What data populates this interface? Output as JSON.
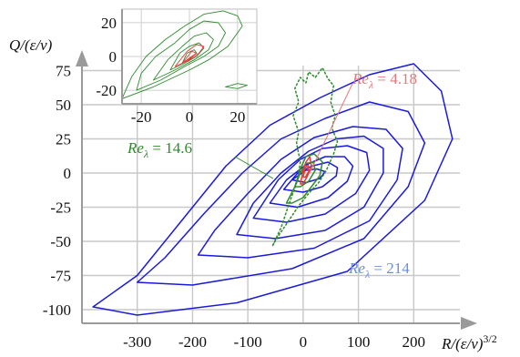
{
  "chart_data": {
    "type": "contour",
    "xlabel": "R/(ε/ν)",
    "xlabel_sup": "3/2",
    "ylabel": "Q/(ε/ν)",
    "x_ticks": [
      -300,
      -200,
      -100,
      0,
      100,
      200
    ],
    "y_ticks": [
      75,
      50,
      25,
      0,
      -25,
      -50,
      -75,
      -100
    ],
    "xlim": [
      -400,
      300
    ],
    "ylim": [
      -110,
      90
    ],
    "grid": true,
    "annotations": [
      {
        "name": "Re",
        "sub": "λ",
        "text": " = 4.18",
        "color": "#e07a7a"
      },
      {
        "name": "Re",
        "sub": "λ",
        "text": " = 14.6",
        "color": "#2e8b2e"
      },
      {
        "name": "Re",
        "sub": "λ",
        "text": " = 214",
        "color": "#6a8fe0"
      }
    ],
    "series": [
      {
        "color": "#1a1adb",
        "contours": [
          [
            [
              -380,
              -98
            ],
            [
              -300,
              -104
            ],
            [
              -120,
              -95
            ],
            [
              80,
              -72
            ],
            [
              220,
              -20
            ],
            [
              270,
              25
            ],
            [
              250,
              60
            ],
            [
              200,
              80
            ],
            [
              120,
              72
            ],
            [
              30,
              55
            ],
            [
              -60,
              35
            ],
            [
              -140,
              5
            ],
            [
              -220,
              -35
            ],
            [
              -300,
              -75
            ],
            [
              -380,
              -98
            ]
          ],
          [
            [
              -300,
              -80
            ],
            [
              -200,
              -82
            ],
            [
              -20,
              -70
            ],
            [
              110,
              -48
            ],
            [
              190,
              -10
            ],
            [
              220,
              22
            ],
            [
              190,
              45
            ],
            [
              120,
              52
            ],
            [
              40,
              40
            ],
            [
              -40,
              25
            ],
            [
              -110,
              0
            ],
            [
              -180,
              -30
            ],
            [
              -250,
              -62
            ],
            [
              -300,
              -80
            ]
          ],
          [
            [
              -190,
              -60
            ],
            [
              -100,
              -62
            ],
            [
              20,
              -55
            ],
            [
              120,
              -35
            ],
            [
              170,
              -5
            ],
            [
              180,
              18
            ],
            [
              150,
              32
            ],
            [
              90,
              34
            ],
            [
              20,
              26
            ],
            [
              -40,
              10
            ],
            [
              -100,
              -15
            ],
            [
              -160,
              -42
            ],
            [
              -190,
              -60
            ]
          ],
          [
            [
              -120,
              -45
            ],
            [
              -50,
              -48
            ],
            [
              40,
              -42
            ],
            [
              110,
              -25
            ],
            [
              145,
              0
            ],
            [
              145,
              18
            ],
            [
              110,
              27
            ],
            [
              60,
              25
            ],
            [
              10,
              16
            ],
            [
              -40,
              0
            ],
            [
              -90,
              -22
            ],
            [
              -120,
              -45
            ]
          ],
          [
            [
              -90,
              -33
            ],
            [
              -30,
              -36
            ],
            [
              40,
              -30
            ],
            [
              95,
              -15
            ],
            [
              120,
              2
            ],
            [
              115,
              15
            ],
            [
              80,
              20
            ],
            [
              35,
              18
            ],
            [
              -5,
              10
            ],
            [
              -45,
              -5
            ],
            [
              -90,
              -33
            ]
          ],
          [
            [
              -60,
              -22
            ],
            [
              -10,
              -25
            ],
            [
              45,
              -18
            ],
            [
              80,
              -6
            ],
            [
              90,
              5
            ],
            [
              75,
              12
            ],
            [
              40,
              12
            ],
            [
              5,
              6
            ],
            [
              -30,
              -5
            ],
            [
              -60,
              -22
            ]
          ],
          [
            [
              -35,
              -12
            ],
            [
              0,
              -14
            ],
            [
              35,
              -10
            ],
            [
              60,
              -2
            ],
            [
              62,
              4
            ],
            [
              45,
              8
            ],
            [
              15,
              5
            ],
            [
              -10,
              0
            ],
            [
              -35,
              -12
            ]
          ],
          [
            [
              -20,
              -5
            ],
            [
              5,
              -7
            ],
            [
              30,
              -4
            ],
            [
              40,
              1
            ],
            [
              25,
              3
            ],
            [
              5,
              2
            ],
            [
              -20,
              -5
            ]
          ]
        ]
      },
      {
        "color": "#2e8b2e",
        "contours": [
          [
            [
              -55,
              -53
            ],
            [
              -40,
              -40
            ],
            [
              -25,
              -22
            ],
            [
              -10,
              -5
            ],
            [
              -5,
              8
            ],
            [
              -12,
              22
            ],
            [
              -8,
              30
            ],
            [
              -18,
              42
            ],
            [
              -8,
              52
            ],
            [
              -15,
              62
            ],
            [
              -5,
              70
            ],
            [
              5,
              66
            ],
            [
              10,
              74
            ],
            [
              22,
              70
            ],
            [
              35,
              77
            ],
            [
              45,
              69
            ],
            [
              55,
              64
            ],
            [
              50,
              52
            ],
            [
              58,
              42
            ],
            [
              52,
              33
            ],
            [
              62,
              23
            ],
            [
              55,
              14
            ],
            [
              42,
              2
            ],
            [
              28,
              -7
            ],
            [
              12,
              -14
            ],
            [
              -8,
              -24
            ],
            [
              -28,
              -36
            ],
            [
              -48,
              -48
            ],
            [
              -55,
              -53
            ]
          ],
          [
            [
              -30,
              -22
            ],
            [
              -15,
              -10
            ],
            [
              -5,
              3
            ],
            [
              5,
              12
            ],
            [
              20,
              14
            ],
            [
              35,
              8
            ],
            [
              30,
              -2
            ],
            [
              15,
              -10
            ],
            [
              0,
              -18
            ],
            [
              -20,
              -22
            ],
            [
              -30,
              -22
            ]
          ],
          [
            [
              -15,
              -10
            ],
            [
              -5,
              0
            ],
            [
              5,
              7
            ],
            [
              18,
              8
            ],
            [
              22,
              2
            ],
            [
              10,
              -6
            ],
            [
              -5,
              -10
            ],
            [
              -15,
              -10
            ]
          ]
        ]
      },
      {
        "color": "#e23a3a",
        "contours": [
          [
            [
              -5,
              -8
            ],
            [
              0,
              2
            ],
            [
              5,
              8
            ],
            [
              12,
              12
            ],
            [
              15,
              5
            ],
            [
              8,
              -2
            ],
            [
              0,
              -8
            ],
            [
              -5,
              -8
            ]
          ],
          [
            [
              0,
              -3
            ],
            [
              4,
              4
            ],
            [
              9,
              6
            ],
            [
              10,
              1
            ],
            [
              4,
              -3
            ],
            [
              0,
              -3
            ]
          ]
        ]
      }
    ],
    "inset": {
      "x_ticks": [
        -20,
        0,
        20
      ],
      "y_ticks": [
        20,
        0,
        -20
      ],
      "xlim": [
        -28,
        28
      ],
      "ylim": [
        -28,
        28
      ],
      "series": [
        {
          "color": "#2e8b2e",
          "contours": [
            [
              [
                -28,
                -25
              ],
              [
                -15,
                -18
              ],
              [
                0,
                -8
              ],
              [
                8,
                -2
              ],
              [
                16,
                6
              ],
              [
                22,
                18
              ],
              [
                20,
                24
              ],
              [
                14,
                27
              ],
              [
                6,
                25
              ],
              [
                -2,
                18
              ],
              [
                -10,
                10
              ],
              [
                -18,
                0
              ],
              [
                -24,
                -12
              ],
              [
                -28,
                -25
              ]
            ],
            [
              [
                -22,
                -20
              ],
              [
                -12,
                -14
              ],
              [
                -2,
                -6
              ],
              [
                6,
                0
              ],
              [
                12,
                6
              ],
              [
                15,
                14
              ],
              [
                12,
                20
              ],
              [
                6,
                21
              ],
              [
                0,
                16
              ],
              [
                -6,
                8
              ],
              [
                -14,
                0
              ],
              [
                -20,
                -10
              ],
              [
                -22,
                -20
              ]
            ],
            [
              [
                -15,
                -14
              ],
              [
                -6,
                -8
              ],
              [
                2,
                -2
              ],
              [
                8,
                4
              ],
              [
                10,
                10
              ],
              [
                7,
                14
              ],
              [
                2,
                12
              ],
              [
                -3,
                6
              ],
              [
                -9,
                -2
              ],
              [
                -15,
                -14
              ]
            ],
            [
              [
                -8,
                -8
              ],
              [
                -2,
                -4
              ],
              [
                3,
                0
              ],
              [
                6,
                5
              ],
              [
                4,
                8
              ],
              [
                0,
                6
              ],
              [
                -4,
                2
              ],
              [
                -8,
                -8
              ]
            ],
            [
              [
                -3,
                -4
              ],
              [
                0,
                -1
              ],
              [
                3,
                2
              ],
              [
                2,
                4
              ],
              [
                -1,
                2
              ],
              [
                -3,
                -4
              ]
            ],
            [
              [
                15,
                -18
              ],
              [
                20,
                -16
              ],
              [
                24,
                -17
              ],
              [
                20,
                -19
              ],
              [
                15,
                -18
              ]
            ]
          ]
        },
        {
          "color": "#e23a3a",
          "contours": [
            [
              [
                -6,
                -6
              ],
              [
                0,
                -2
              ],
              [
                4,
                2
              ],
              [
                6,
                6
              ],
              [
                3,
                7
              ],
              [
                -1,
                3
              ],
              [
                -6,
                -6
              ]
            ],
            [
              [
                -3,
                -4
              ],
              [
                0,
                -1
              ],
              [
                3,
                2
              ],
              [
                1,
                3
              ],
              [
                -3,
                -4
              ]
            ],
            [
              [
                -1,
                -3
              ],
              [
                1,
                0
              ],
              [
                2,
                1
              ],
              [
                -1,
                -3
              ]
            ]
          ]
        }
      ]
    }
  }
}
